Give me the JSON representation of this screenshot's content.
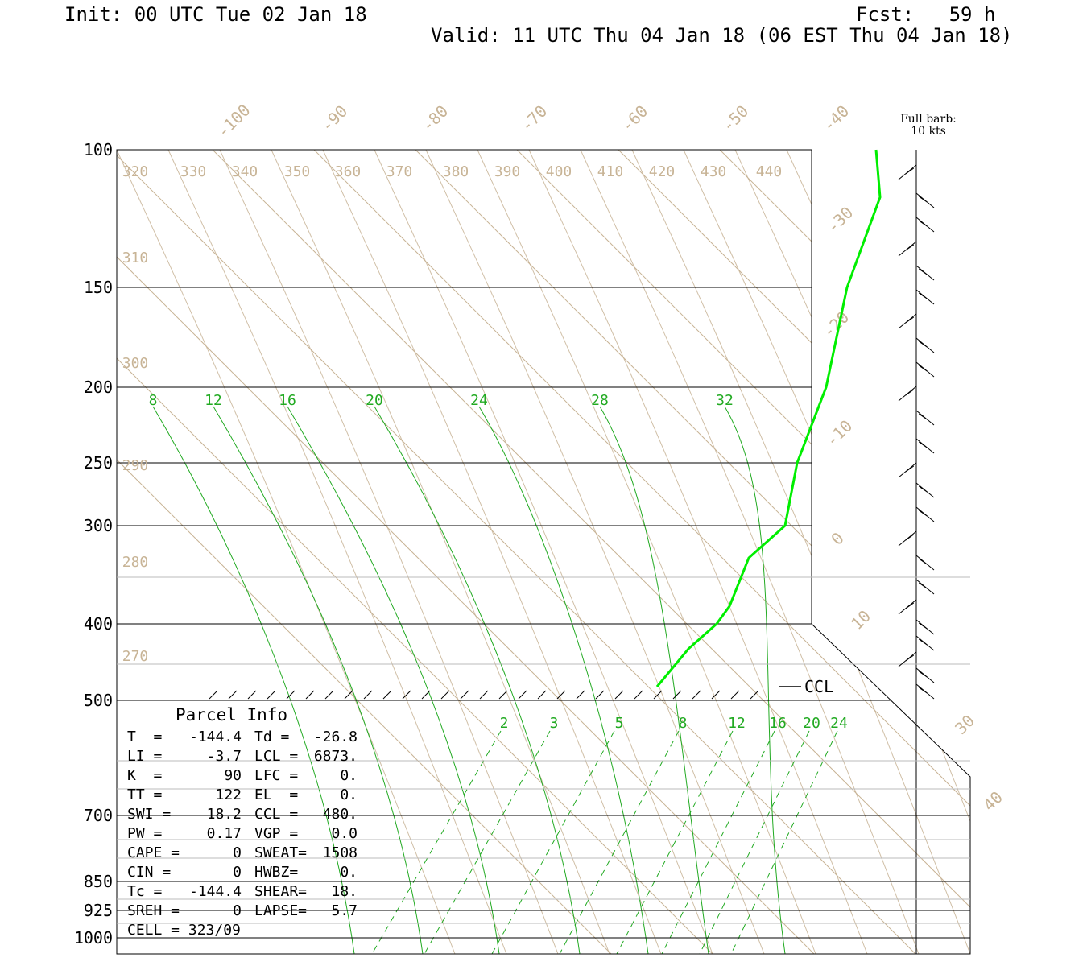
{
  "header": {
    "init": "Init: 00 UTC Tue 02 Jan 18",
    "fcst": "Fcst:   59 h",
    "valid": "Valid: 11 UTC Thu 04 Jan 18 (06 EST Thu 04 Jan 18)"
  },
  "colors": {
    "isotherm": "#c8b496",
    "moist_adiabat": "#22aa22",
    "profile": "#00ee00",
    "axis": "#000000",
    "grid_light": "#bbbbbb"
  },
  "chart_data": {
    "type": "skew-t",
    "pressure_levels": [
      {
        "label": "100",
        "value": 100
      },
      {
        "label": "150",
        "value": 150
      },
      {
        "label": "200",
        "value": 200
      },
      {
        "label": "250",
        "value": 250
      },
      {
        "label": "300",
        "value": 300
      },
      {
        "label": "400",
        "value": 400
      },
      {
        "label": "500",
        "value": 500
      },
      {
        "label": "700",
        "value": 700
      },
      {
        "label": "850",
        "value": 850
      },
      {
        "label": "925",
        "value": 925
      },
      {
        "label": "1000",
        "value": 1000
      }
    ],
    "isotherm_labels": [
      "-100",
      "-90",
      "-80",
      "-70",
      "-60",
      "-50",
      "-40",
      "-30",
      "-20",
      "-10",
      "0",
      "10",
      "30",
      "40"
    ],
    "theta_labels_top": [
      "320",
      "330",
      "340",
      "350",
      "360",
      "370",
      "380",
      "390",
      "400",
      "410",
      "420",
      "430",
      "440"
    ],
    "theta_labels_left": [
      "310",
      "300",
      "290",
      "280",
      "270"
    ],
    "moist_adiabat_labels": [
      "8",
      "12",
      "16",
      "20",
      "24",
      "28",
      "32"
    ],
    "mixing_ratio_labels": [
      "2",
      "3",
      "5",
      "8",
      "12",
      "16",
      "20",
      "24"
    ],
    "ccl_label": "CCL",
    "wind_note": [
      "Full barb:",
      "10 kts"
    ],
    "temperature_profile": [
      {
        "p": 100,
        "t": -39
      },
      {
        "p": 115,
        "t": -37
      },
      {
        "p": 150,
        "t": -31
      },
      {
        "p": 200,
        "t": -24
      },
      {
        "p": 250,
        "t": -17
      },
      {
        "p": 300,
        "t": -12
      },
      {
        "p": 330,
        "t": -10
      },
      {
        "p": 380,
        "t": -9
      },
      {
        "p": 400,
        "t": -10
      },
      {
        "p": 430,
        "t": -13
      },
      {
        "p": 480,
        "t": -16
      }
    ],
    "parcel_info": {
      "title": "Parcel Info",
      "rows": [
        [
          "T  =",
          "-144.4",
          "Td =",
          "-26.8"
        ],
        [
          "LI =",
          "-3.7",
          "LCL =",
          "6873."
        ],
        [
          "K  =",
          "90",
          "LFC =",
          "0."
        ],
        [
          "TT =",
          "122",
          "EL  =",
          "0."
        ],
        [
          "SWI =",
          "18.2",
          "CCL =",
          "480."
        ],
        [
          "PW =",
          "0.17",
          "VGP =",
          "0.0"
        ],
        [
          "CAPE =",
          "0",
          "SWEAT=",
          "1508"
        ],
        [
          "CIN =",
          "0",
          "HWBZ=",
          "0."
        ],
        [
          "Tc =",
          "-144.4",
          "SHEAR=",
          "18."
        ],
        [
          "SREH =",
          "0",
          "LAPSE=",
          "5.7"
        ],
        [
          "CELL = 323/09",
          "",
          "",
          ""
        ]
      ]
    }
  }
}
